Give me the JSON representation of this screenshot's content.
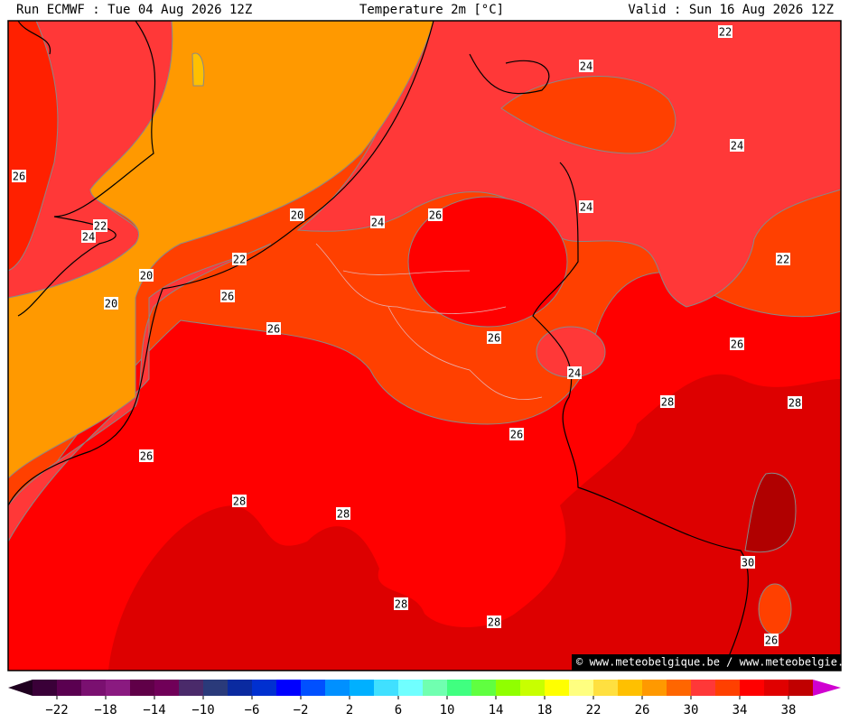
{
  "header": {
    "run": "Run ECMWF : Tue 04 Aug 2026 12Z",
    "title": "Temperature 2m [°C]",
    "valid": "Valid : Sun 16 Aug 2026 12Z"
  },
  "map": {
    "contour_labels": [
      "22",
      "24",
      "24",
      "26",
      "20",
      "24",
      "26",
      "24",
      "22",
      "24",
      "22",
      "22",
      "20",
      "26",
      "20",
      "26",
      "26",
      "26",
      "24",
      "28",
      "28",
      "26",
      "26",
      "28",
      "28",
      "30",
      "28",
      "28",
      "26"
    ],
    "watermark": "© www.meteobelgique.be / www.meteobelgie.be"
  },
  "colorbar": {
    "labels": [
      "−22",
      "−18",
      "−14",
      "−10",
      "−6",
      "−2",
      "2",
      "6",
      "10",
      "14",
      "18",
      "22",
      "26",
      "30",
      "34",
      "38"
    ],
    "colors": [
      "#3a0038",
      "#5a0050",
      "#7a1070",
      "#8a1a80",
      "#600048",
      "#700058",
      "#4a2a6a",
      "#2a3a7a",
      "#0a2aa0",
      "#0030d0",
      "#0000ff",
      "#0050ff",
      "#0090ff",
      "#00b0ff",
      "#40e0ff",
      "#70ffff",
      "#70ffb0",
      "#40ff80",
      "#60ff40",
      "#90ff00",
      "#c8ff00",
      "#ffff00",
      "#ffff80",
      "#ffe040",
      "#ffc000",
      "#ff9900",
      "#ff6600",
      "#ff3838",
      "#ff4000",
      "#ff0000",
      "#e00000",
      "#c00000"
    ],
    "low_color": "#200020",
    "high_color": "#d000d0"
  }
}
